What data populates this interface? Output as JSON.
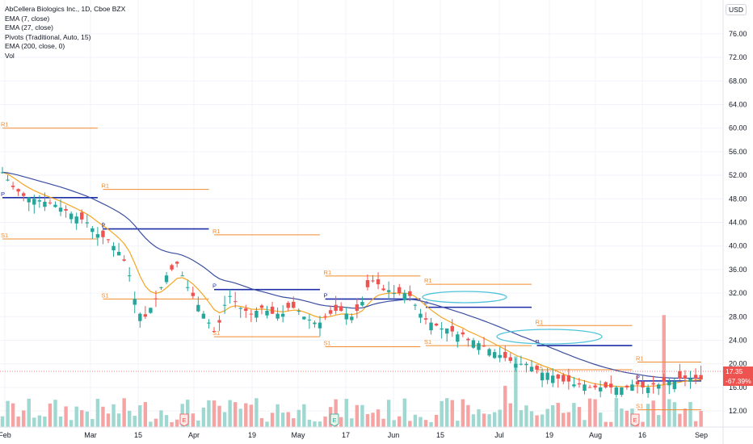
{
  "legend": {
    "title": "AbCellera Biologics Inc., 1D, Cboe BZX",
    "indicators": [
      "EMA (7, close)",
      "EMA (27, close)",
      "Pivots (Traditional, Auto, 15)",
      "EMA (200, close, 0)",
      "Vol"
    ]
  },
  "currency_label": "USD",
  "price_axis": {
    "labels": [
      "76.00",
      "72.00",
      "68.00",
      "64.00",
      "60.00",
      "56.00",
      "52.00",
      "48.00",
      "44.00",
      "40.00",
      "36.00",
      "32.00",
      "28.00",
      "24.00",
      "20.00",
      "16.00",
      "12.00"
    ],
    "current_price": "17.35",
    "change_pct": "-67.39%"
  },
  "time_axis": {
    "labels": [
      "Feb",
      "Mar",
      "15",
      "Apr",
      "19",
      "May",
      "17",
      "Jun",
      "15",
      "Jul",
      "19",
      "Aug",
      "16",
      "Sep"
    ]
  },
  "earnings_markers": [
    "E",
    "E",
    "E"
  ],
  "colors": {
    "up": "#26a69a",
    "down": "#ef5350",
    "ema_fast": "#f5a623",
    "ema_slow": "#3b4ea0",
    "pivot_p": "#1e2fa8",
    "pivot_rs": "#f08b2f",
    "vol_up": "#9fd8d1",
    "vol_down": "#f5a3a3"
  },
  "pivot_labels": {
    "r1": "R1",
    "p": "P",
    "s1": "S1"
  },
  "chart_data": {
    "type": "candlestick",
    "ylim": [
      9,
      79
    ],
    "grid": true,
    "close_path": [
      [
        0,
        52.5
      ],
      [
        2,
        50
      ],
      [
        4,
        48.5
      ],
      [
        6,
        48
      ],
      [
        8,
        47.5
      ],
      [
        10,
        47
      ],
      [
        12,
        46
      ],
      [
        14,
        45
      ],
      [
        16,
        44
      ],
      [
        18,
        42
      ],
      [
        20,
        41
      ],
      [
        21,
        40
      ],
      [
        22,
        39
      ],
      [
        23,
        37.5
      ],
      [
        24,
        35
      ],
      [
        25,
        31
      ],
      [
        26,
        28.5
      ],
      [
        27,
        28
      ],
      [
        28,
        29.5
      ],
      [
        29,
        31
      ],
      [
        30,
        33
      ],
      [
        31,
        35
      ],
      [
        32,
        36
      ],
      [
        33,
        37
      ],
      [
        34,
        35
      ],
      [
        35,
        33
      ],
      [
        36,
        31.5
      ],
      [
        37,
        30
      ],
      [
        38,
        28.5
      ],
      [
        39,
        27
      ],
      [
        40,
        25.5
      ],
      [
        41,
        27
      ],
      [
        42,
        30
      ],
      [
        43,
        31.5
      ],
      [
        44,
        30.5
      ],
      [
        45,
        29.5
      ],
      [
        46,
        29
      ],
      [
        47,
        28.5
      ],
      [
        48,
        29
      ],
      [
        49,
        29.5
      ],
      [
        50,
        29
      ],
      [
        51,
        28.5
      ],
      [
        52,
        28.5
      ],
      [
        53,
        28.5
      ],
      [
        54,
        29.5
      ],
      [
        55,
        29.5
      ],
      [
        56,
        29
      ],
      [
        57,
        28
      ],
      [
        58,
        27.5
      ],
      [
        59,
        27
      ],
      [
        60,
        27
      ],
      [
        61,
        28
      ],
      [
        62,
        28.5
      ],
      [
        63,
        29
      ],
      [
        64,
        29
      ],
      [
        65,
        28.5
      ],
      [
        66,
        28
      ],
      [
        67,
        29
      ],
      [
        68,
        30.5
      ],
      [
        69,
        33
      ],
      [
        70,
        34
      ],
      [
        71,
        33.5
      ],
      [
        72,
        32.5
      ],
      [
        73,
        32.5
      ],
      [
        74,
        32
      ],
      [
        75,
        32
      ],
      [
        76,
        32
      ],
      [
        77,
        31.5
      ],
      [
        78,
        30
      ],
      [
        79,
        28.5
      ],
      [
        80,
        27.5
      ],
      [
        81,
        27
      ],
      [
        82,
        26.5
      ],
      [
        83,
        26
      ],
      [
        84,
        26
      ],
      [
        85,
        25.5
      ],
      [
        86,
        25
      ],
      [
        87,
        25
      ],
      [
        88,
        24
      ],
      [
        89,
        24
      ],
      [
        90,
        23.5
      ],
      [
        91,
        23
      ],
      [
        92,
        22.5
      ],
      [
        93,
        22
      ],
      [
        94,
        21.5
      ],
      [
        95,
        21
      ],
      [
        96,
        20.5
      ],
      [
        97,
        20
      ],
      [
        98,
        20
      ],
      [
        99,
        20
      ],
      [
        100,
        19.5
      ],
      [
        101,
        19
      ],
      [
        102,
        18.5
      ],
      [
        103,
        18.5
      ],
      [
        104,
        18
      ],
      [
        105,
        17.5
      ],
      [
        106,
        17
      ],
      [
        107,
        17
      ],
      [
        108,
        16.5
      ],
      [
        109,
        16.5
      ],
      [
        110,
        16.5
      ],
      [
        111,
        16
      ],
      [
        112,
        16
      ],
      [
        113,
        16
      ],
      [
        114,
        16
      ],
      [
        115,
        16
      ],
      [
        116,
        16
      ],
      [
        117,
        16
      ],
      [
        118,
        16
      ],
      [
        119,
        16.5
      ],
      [
        120,
        16.5
      ],
      [
        121,
        16
      ],
      [
        122,
        16
      ],
      [
        123,
        16.5
      ],
      [
        124,
        16.5
      ],
      [
        125,
        17
      ],
      [
        126,
        17
      ],
      [
        127,
        17
      ],
      [
        128,
        17.5
      ],
      [
        129,
        17.5
      ],
      [
        130,
        17.5
      ],
      [
        131,
        17.5
      ],
      [
        132,
        17.35
      ]
    ],
    "pivot_periods": [
      {
        "from": 0,
        "to": 18,
        "r1": 60.0,
        "p": 48.2,
        "s1": 41.2
      },
      {
        "from": 19,
        "to": 39,
        "r1": 49.6,
        "p": 42.9,
        "s1": 31.0
      },
      {
        "from": 40,
        "to": 60,
        "r1": 41.9,
        "p": 32.6,
        "s1": 24.6
      },
      {
        "from": 61,
        "to": 79,
        "r1": 34.9,
        "p": 31.0,
        "s1": 22.9
      },
      {
        "from": 80,
        "to": 100,
        "r1": 33.5,
        "p": 29.6,
        "s1": 23.1
      },
      {
        "from": 101,
        "to": 119,
        "r1": 26.5,
        "p": 23.1,
        "s1": 19.0
      },
      {
        "from": 120,
        "to": 135,
        "r1": 20.3,
        "p": 17.1,
        "s1": 12.2
      }
    ],
    "volume_spikes": [
      [
        95,
        7
      ],
      [
        97,
        12
      ],
      [
        125,
        19
      ]
    ]
  }
}
